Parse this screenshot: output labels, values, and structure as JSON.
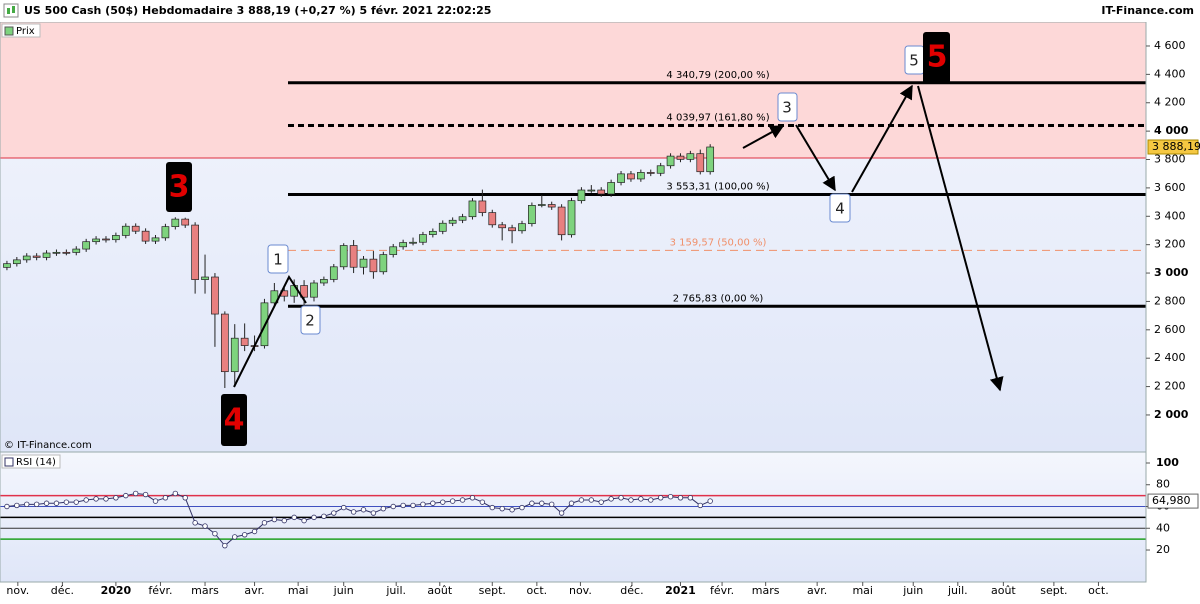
{
  "header": {
    "title": "US 500 Cash (50$) Hebdomadaire 3 888,19 (+0,27 %) 5 févr. 2021 22:02:25",
    "brand": "IT-Finance.com",
    "legend": "Prix",
    "copyright": "© IT-Finance.com"
  },
  "chart_data": [
    {
      "type": "candlestick",
      "name": "Prix",
      "open": [
        3040,
        3066,
        3093,
        3120,
        3110,
        3141,
        3146,
        3145,
        3169,
        3221,
        3240,
        3235,
        3265,
        3330,
        3295,
        3225,
        3248,
        3327,
        3380,
        3338,
        2954,
        2972,
        2711,
        2305,
        2541,
        2489,
        2488,
        2790,
        2875,
        2837,
        2912,
        2830,
        2930,
        2955,
        3044,
        3194,
        3041,
        3098,
        3009,
        3130,
        3185,
        3215,
        3217,
        3271,
        3294,
        3351,
        3372,
        3397,
        3508,
        3426,
        3340,
        3319,
        3298,
        3348,
        3477,
        3483,
        3465,
        3270,
        3510,
        3585,
        3585,
        3557,
        3638,
        3699,
        3663,
        3709,
        3703,
        3756,
        3824,
        3801,
        3841,
        3714
      ],
      "high": [
        3086,
        3113,
        3140,
        3140,
        3161,
        3166,
        3166,
        3189,
        3241,
        3260,
        3260,
        3285,
        3350,
        3350,
        3315,
        3268,
        3347,
        3393,
        3390,
        3358,
        3130,
        3000,
        2730,
        2640,
        2645,
        2560,
        2818,
        2930,
        2895,
        2955,
        2950,
        2950,
        2975,
        3064,
        3210,
        3233,
        3120,
        3155,
        3150,
        3205,
        3235,
        3250,
        3290,
        3314,
        3371,
        3392,
        3417,
        3528,
        3588,
        3446,
        3360,
        3340,
        3368,
        3497,
        3550,
        3503,
        3485,
        3530,
        3605,
        3620,
        3605,
        3658,
        3719,
        3719,
        3729,
        3729,
        3776,
        3844,
        3844,
        3861,
        3870,
        3908
      ],
      "low": [
        3020,
        3046,
        3073,
        3090,
        3090,
        3121,
        3125,
        3125,
        3149,
        3201,
        3215,
        3215,
        3245,
        3275,
        3205,
        3205,
        3228,
        3307,
        3318,
        2855,
        2855,
        2480,
        2190,
        2200,
        2450,
        2450,
        2468,
        2760,
        2800,
        2790,
        2760,
        2800,
        2910,
        2935,
        3024,
        3000,
        2990,
        2960,
        2990,
        3110,
        3165,
        3195,
        3197,
        3251,
        3274,
        3331,
        3352,
        3377,
        3400,
        3320,
        3230,
        3210,
        3278,
        3328,
        3463,
        3445,
        3230,
        3250,
        3490,
        3565,
        3537,
        3537,
        3618,
        3643,
        3643,
        3683,
        3683,
        3736,
        3781,
        3781,
        3695,
        3694
      ],
      "close": [
        3066,
        3093,
        3120,
        3110,
        3141,
        3146,
        3145,
        3169,
        3221,
        3240,
        3235,
        3265,
        3330,
        3295,
        3225,
        3248,
        3327,
        3380,
        3338,
        2954,
        2972,
        2711,
        2305,
        2541,
        2489,
        2488,
        2790,
        2875,
        2837,
        2912,
        2830,
        2930,
        2955,
        3044,
        3194,
        3041,
        3098,
        3009,
        3130,
        3185,
        3215,
        3217,
        3271,
        3294,
        3351,
        3372,
        3397,
        3508,
        3426,
        3340,
        3319,
        3298,
        3348,
        3477,
        3483,
        3465,
        3270,
        3510,
        3585,
        3585,
        3557,
        3638,
        3699,
        3663,
        3709,
        3703,
        3756,
        3824,
        3801,
        3841,
        3714,
        3888.19
      ],
      "up_color": "#7ed37e",
      "down_color": "#e88080",
      "last_price": {
        "value": 3888.19,
        "label": "3 888,19"
      },
      "zone": {
        "from": 3811,
        "color": "#fdd8d8"
      },
      "xlim": [
        -0.7,
        115
      ],
      "xticks": [
        {
          "value": 1.1,
          "label": "nov."
        },
        {
          "value": 5.6,
          "label": "déc."
        },
        {
          "value": 11,
          "label": "2020"
        },
        {
          "value": 15.5,
          "label": "févr."
        },
        {
          "value": 20,
          "label": "mars"
        },
        {
          "value": 25,
          "label": "avr."
        },
        {
          "value": 29.4,
          "label": "mai"
        },
        {
          "value": 34,
          "label": "juin"
        },
        {
          "value": 39.3,
          "label": "juil."
        },
        {
          "value": 43.7,
          "label": "août"
        },
        {
          "value": 49,
          "label": "sept."
        },
        {
          "value": 53.5,
          "label": "oct."
        },
        {
          "value": 57.9,
          "label": "nov."
        },
        {
          "value": 63.1,
          "label": "déc."
        },
        {
          "value": 68,
          "label": "2021"
        },
        {
          "value": 72.2,
          "label": "févr."
        },
        {
          "value": 76.6,
          "label": "mars"
        },
        {
          "value": 81.8,
          "label": "avr."
        },
        {
          "value": 86.4,
          "label": "mai"
        },
        {
          "value": 91.5,
          "label": "juin"
        },
        {
          "value": 96,
          "label": "juil."
        },
        {
          "value": 100.6,
          "label": "août"
        },
        {
          "value": 105.7,
          "label": "sept."
        },
        {
          "value": 110.2,
          "label": "oct."
        }
      ],
      "ylim": [
        1739,
        4769
      ],
      "yticks": [
        {
          "value": 4600,
          "label": "4 600"
        },
        {
          "value": 4400,
          "label": "4 400"
        },
        {
          "value": 4200,
          "label": "4 200"
        },
        {
          "value": 4000,
          "label": "4 000"
        },
        {
          "value": 3800,
          "label": "3 800"
        },
        {
          "value": 3600,
          "label": "3 600"
        },
        {
          "value": 3400,
          "label": "3 400"
        },
        {
          "value": 3200,
          "label": "3 200"
        },
        {
          "value": 3000,
          "label": "3 000"
        },
        {
          "value": 2800,
          "label": "2 800"
        },
        {
          "value": 2600,
          "label": "2 600"
        },
        {
          "value": 2400,
          "label": "2 400"
        },
        {
          "value": 2200,
          "label": "2 200"
        },
        {
          "value": 2000,
          "label": "2 000"
        }
      ],
      "levels": [
        {
          "value": 4340.79,
          "label": "4 340,79 (200,00 %)",
          "color": "#000000",
          "dashed": false
        },
        {
          "value": 4039.97,
          "label": "4 039,97 (161,80 %)",
          "color": "#000000",
          "dashed": true
        },
        {
          "value": 3553.31,
          "label": "3 553,31 (100,00 %)",
          "color": "#000000",
          "dashed": false
        },
        {
          "value": 3159.57,
          "label": "3 159,57 (50,00 %)",
          "color": "#f0906a",
          "dashed": true
        },
        {
          "value": 2765.83,
          "label": "2 765,83 (0,00 %)",
          "color": "#000000",
          "dashed": false
        }
      ],
      "annotations": [
        "3",
        "4",
        "1",
        "2",
        "3",
        "4",
        "5",
        "5"
      ]
    },
    {
      "type": "line",
      "name": "RSI (14)",
      "color": "#333366",
      "values": [
        60,
        61,
        62,
        62,
        63,
        63,
        64,
        64,
        66,
        67,
        67,
        68,
        70,
        72,
        71,
        65,
        68,
        72,
        68,
        45,
        42,
        35,
        24,
        32,
        34,
        37,
        45,
        48,
        47,
        50,
        47,
        50,
        51,
        54,
        59,
        55,
        57,
        54,
        58,
        60,
        61,
        61,
        62,
        63,
        64,
        65,
        66,
        68,
        64,
        59,
        58,
        57,
        59,
        63,
        63,
        62,
        54,
        63,
        66,
        66,
        64,
        67,
        68,
        66,
        67,
        66,
        68,
        69,
        68,
        68,
        61,
        64.98
      ],
      "last_label": "64,980",
      "ylim": [
        -9.4,
        110.1
      ],
      "yticks": [
        100,
        80,
        60,
        40,
        20
      ],
      "levels": [
        {
          "value": 70,
          "color": "#e0304a"
        },
        {
          "value": 60,
          "color": "#4050c0"
        },
        {
          "value": 50,
          "color": "#000000"
        },
        {
          "value": 40,
          "color": "#333333"
        },
        {
          "value": 30,
          "color": "#20a020"
        }
      ]
    }
  ]
}
